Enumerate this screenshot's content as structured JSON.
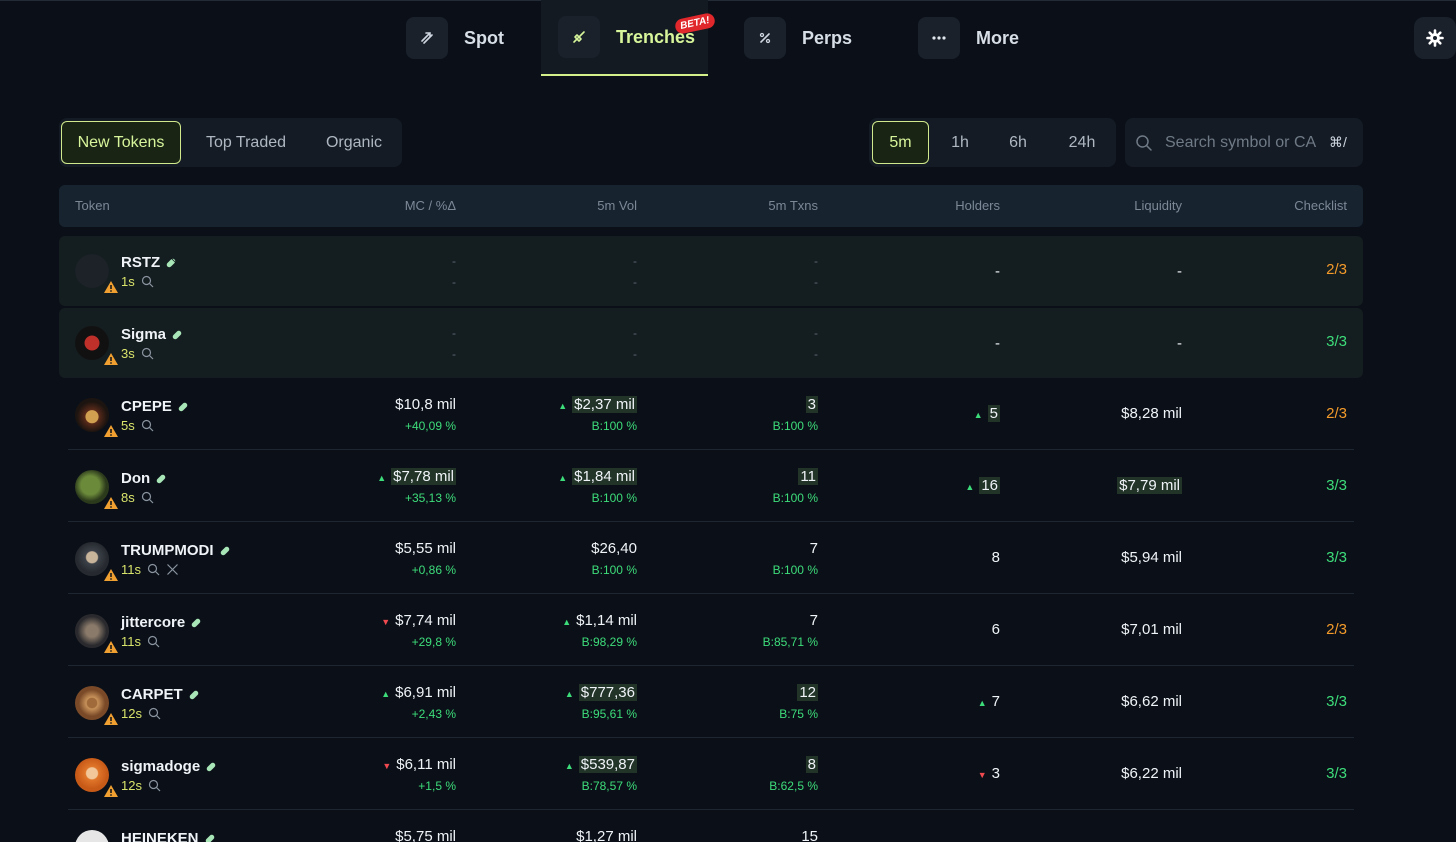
{
  "nav": {
    "items": [
      {
        "label": "Spot",
        "icon": "swap-icon"
      },
      {
        "label": "Trenches",
        "icon": "shovel-icon",
        "badge": "BETA!"
      },
      {
        "label": "Perps",
        "icon": "percent-icon"
      },
      {
        "label": "More",
        "icon": "ellipsis-icon"
      }
    ],
    "active": "Trenches"
  },
  "filters": {
    "tabs": [
      "New Tokens",
      "Top Traded",
      "Organic"
    ],
    "active_tab": "New Tokens",
    "timeframes": [
      "5m",
      "1h",
      "6h",
      "24h"
    ],
    "active_timeframe": "5m",
    "search_placeholder": "Search symbol or CA",
    "shortcut": "⌘/"
  },
  "table": {
    "headers": [
      "Token",
      "MC / %Δ",
      "5m Vol",
      "5m Txns",
      "Holders",
      "Liquidity",
      "Checklist"
    ],
    "rows": [
      {
        "name": "RSTZ",
        "age": "1s",
        "mc": "-",
        "mc_change": "-",
        "vol": "-",
        "vol_buy": "-",
        "txns": "-",
        "txns_buy": "-",
        "holders": "-",
        "liquidity": "-",
        "checklist": "2/3",
        "check_color": "orange",
        "new": true
      },
      {
        "name": "Sigma",
        "age": "3s",
        "mc": "-",
        "mc_change": "-",
        "vol": "-",
        "vol_buy": "-",
        "txns": "-",
        "txns_buy": "-",
        "holders": "-",
        "liquidity": "-",
        "checklist": "3/3",
        "check_color": "green",
        "new": true
      },
      {
        "name": "CPEPE",
        "age": "5s",
        "mc": "$10,8 mil",
        "mc_change": "+40,09 %",
        "vol": "$2,37 mil",
        "vol_buy": "B:100 %",
        "txns": "3",
        "txns_buy": "B:100 %",
        "holders": "5",
        "liquidity": "$8,28 mil",
        "checklist": "2/3",
        "check_color": "orange"
      },
      {
        "name": "Don",
        "age": "8s",
        "mc": "$7,78 mil",
        "mc_change": "+35,13 %",
        "vol": "$1,84 mil",
        "vol_buy": "B:100 %",
        "txns": "11",
        "txns_buy": "B:100 %",
        "holders": "16",
        "liquidity": "$7,79 mil",
        "checklist": "3/3",
        "check_color": "green"
      },
      {
        "name": "TRUMPMODI",
        "age": "11s",
        "mc": "$5,55 mil",
        "mc_change": "+0,86 %",
        "vol": "$26,40",
        "vol_buy": "B:100 %",
        "txns": "7",
        "txns_buy": "B:100 %",
        "holders": "8",
        "liquidity": "$5,94 mil",
        "checklist": "3/3",
        "check_color": "green"
      },
      {
        "name": "jittercore",
        "age": "11s",
        "mc": "$7,74 mil",
        "mc_change": "+29,8 %",
        "vol": "$1,14 mil",
        "vol_buy": "B:98,29 %",
        "txns": "7",
        "txns_buy": "B:85,71 %",
        "holders": "6",
        "liquidity": "$7,01 mil",
        "checklist": "2/3",
        "check_color": "orange"
      },
      {
        "name": "CARPET",
        "age": "12s",
        "mc": "$6,91 mil",
        "mc_change": "+2,43 %",
        "vol": "$777,36",
        "vol_buy": "B:95,61 %",
        "txns": "12",
        "txns_buy": "B:75 %",
        "holders": "7",
        "liquidity": "$6,62 mil",
        "checklist": "3/3",
        "check_color": "green"
      },
      {
        "name": "sigmadoge",
        "age": "12s",
        "mc": "$6,11 mil",
        "mc_change": "+1,5 %",
        "vol": "$539,87",
        "vol_buy": "B:78,57 %",
        "txns": "8",
        "txns_buy": "B:62,5 %",
        "holders": "3",
        "liquidity": "$6,22 mil",
        "checklist": "3/3",
        "check_color": "green"
      },
      {
        "name": "HEINEKEN",
        "age": "",
        "mc": "$5,75 mil",
        "mc_change": "",
        "vol": "$1,27 mil",
        "vol_buy": "",
        "txns": "15",
        "txns_buy": "",
        "holders": "",
        "liquidity": "",
        "checklist": "",
        "check_color": "green"
      }
    ]
  },
  "colors": {
    "accent": "#d7f59a",
    "positive": "#3ddc7a",
    "negative": "#f0494f",
    "warning": "#f39a2b",
    "background": "#0b1018"
  }
}
